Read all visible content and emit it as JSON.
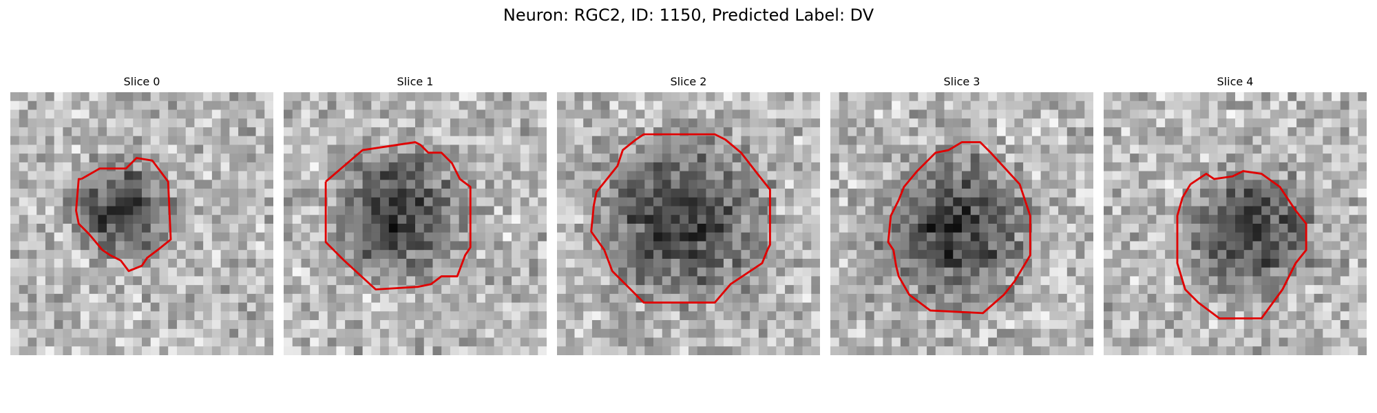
{
  "figure": {
    "title": "Neuron: RGC2, ID: 1150, Predicted Label: DV"
  },
  "panels": [
    {
      "title": "Slice 0",
      "contour": [
        [
          0.27,
          0.33
        ],
        [
          0.34,
          0.29
        ],
        [
          0.44,
          0.29
        ],
        [
          0.48,
          0.25
        ],
        [
          0.54,
          0.26
        ],
        [
          0.6,
          0.34
        ],
        [
          0.61,
          0.56
        ],
        [
          0.56,
          0.6
        ],
        [
          0.52,
          0.63
        ],
        [
          0.5,
          0.66
        ],
        [
          0.45,
          0.68
        ],
        [
          0.42,
          0.64
        ],
        [
          0.38,
          0.62
        ],
        [
          0.35,
          0.6
        ],
        [
          0.3,
          0.54
        ],
        [
          0.26,
          0.5
        ],
        [
          0.25,
          0.45
        ],
        [
          0.26,
          0.33
        ]
      ],
      "dark_center": [
        0.43,
        0.45
      ],
      "dark_radius": 0.2,
      "contour_color": "#e00000"
    },
    {
      "title": "Slice 1",
      "contour": [
        [
          0.16,
          0.34
        ],
        [
          0.3,
          0.22
        ],
        [
          0.5,
          0.19
        ],
        [
          0.52,
          0.2
        ],
        [
          0.55,
          0.23
        ],
        [
          0.6,
          0.23
        ],
        [
          0.64,
          0.27
        ],
        [
          0.67,
          0.33
        ],
        [
          0.71,
          0.36
        ],
        [
          0.71,
          0.59
        ],
        [
          0.69,
          0.62
        ],
        [
          0.66,
          0.7
        ],
        [
          0.6,
          0.7
        ],
        [
          0.56,
          0.73
        ],
        [
          0.51,
          0.74
        ],
        [
          0.35,
          0.75
        ],
        [
          0.23,
          0.64
        ],
        [
          0.16,
          0.57
        ],
        [
          0.16,
          0.35
        ]
      ],
      "dark_center": [
        0.44,
        0.46
      ],
      "dark_radius": 0.26,
      "contour_color": "#e00000"
    },
    {
      "title": "Slice 2",
      "contour": [
        [
          0.3,
          0.18
        ],
        [
          0.33,
          0.16
        ],
        [
          0.6,
          0.16
        ],
        [
          0.64,
          0.18
        ],
        [
          0.7,
          0.23
        ],
        [
          0.77,
          0.32
        ],
        [
          0.81,
          0.37
        ],
        [
          0.81,
          0.58
        ],
        [
          0.8,
          0.6
        ],
        [
          0.78,
          0.65
        ],
        [
          0.66,
          0.73
        ],
        [
          0.6,
          0.8
        ],
        [
          0.33,
          0.8
        ],
        [
          0.26,
          0.73
        ],
        [
          0.21,
          0.68
        ],
        [
          0.18,
          0.6
        ],
        [
          0.13,
          0.53
        ],
        [
          0.14,
          0.43
        ],
        [
          0.15,
          0.38
        ],
        [
          0.23,
          0.28
        ],
        [
          0.25,
          0.22
        ],
        [
          0.3,
          0.18
        ]
      ],
      "dark_center": [
        0.47,
        0.48
      ],
      "dark_radius": 0.33,
      "contour_color": "#e00000"
    },
    {
      "title": "Slice 3",
      "contour": [
        [
          0.45,
          0.22
        ],
        [
          0.5,
          0.19
        ],
        [
          0.57,
          0.19
        ],
        [
          0.61,
          0.23
        ],
        [
          0.72,
          0.35
        ],
        [
          0.76,
          0.47
        ],
        [
          0.76,
          0.62
        ],
        [
          0.7,
          0.72
        ],
        [
          0.66,
          0.77
        ],
        [
          0.58,
          0.84
        ],
        [
          0.38,
          0.83
        ],
        [
          0.34,
          0.8
        ],
        [
          0.3,
          0.77
        ],
        [
          0.26,
          0.7
        ],
        [
          0.25,
          0.66
        ],
        [
          0.24,
          0.6
        ],
        [
          0.22,
          0.57
        ],
        [
          0.23,
          0.47
        ],
        [
          0.26,
          0.41
        ],
        [
          0.28,
          0.36
        ],
        [
          0.33,
          0.3
        ],
        [
          0.4,
          0.23
        ]
      ],
      "dark_center": [
        0.48,
        0.52
      ],
      "dark_radius": 0.3,
      "contour_color": "#e00000"
    },
    {
      "title": "Slice 4",
      "contour": [
        [
          0.33,
          0.35
        ],
        [
          0.39,
          0.31
        ],
        [
          0.42,
          0.33
        ],
        [
          0.49,
          0.32
        ],
        [
          0.53,
          0.3
        ],
        [
          0.6,
          0.31
        ],
        [
          0.67,
          0.36
        ],
        [
          0.73,
          0.45
        ],
        [
          0.77,
          0.5
        ],
        [
          0.77,
          0.6
        ],
        [
          0.73,
          0.65
        ],
        [
          0.68,
          0.75
        ],
        [
          0.6,
          0.86
        ],
        [
          0.44,
          0.86
        ],
        [
          0.36,
          0.8
        ],
        [
          0.31,
          0.75
        ],
        [
          0.28,
          0.65
        ],
        [
          0.28,
          0.47
        ],
        [
          0.3,
          0.4
        ]
      ],
      "dark_center": [
        0.56,
        0.53
      ],
      "dark_radius": 0.26,
      "contour_color": "#e00000"
    }
  ]
}
